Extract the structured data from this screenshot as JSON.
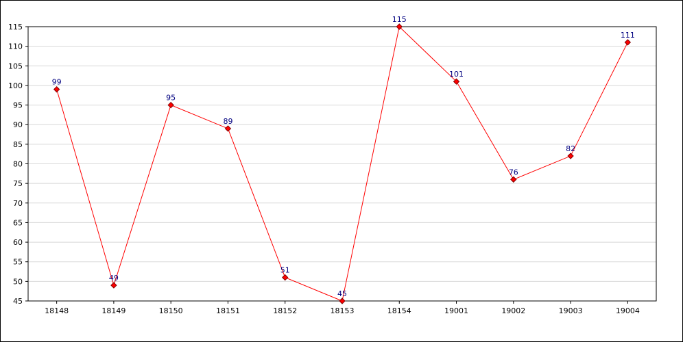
{
  "chart_data": {
    "type": "line",
    "title": "",
    "xlabel": "",
    "ylabel": "",
    "categories": [
      "18148",
      "18149",
      "18150",
      "18151",
      "18152",
      "18153",
      "18154",
      "19001",
      "19002",
      "19003",
      "19004"
    ],
    "series": [
      {
        "values": [
          99,
          49,
          95,
          89,
          51,
          45,
          115,
          101,
          76,
          82,
          111
        ]
      }
    ],
    "ylim": [
      45,
      115
    ],
    "y_ticks": [
      "45",
      "50",
      "55",
      "60",
      "65",
      "70",
      "75",
      "80",
      "85",
      "90",
      "95",
      "100",
      "105",
      "110",
      "115"
    ],
    "data_labels": [
      "99",
      "49",
      "95",
      "89",
      "51",
      "45",
      "115",
      "101",
      "76",
      "82",
      "111"
    ],
    "grid": "horizontal",
    "colors": {
      "line": "#ff0000",
      "marker_fill": "#ff0000",
      "marker_stroke": "#800000",
      "data_label": "#000080",
      "grid": "#d8d8d8"
    }
  }
}
